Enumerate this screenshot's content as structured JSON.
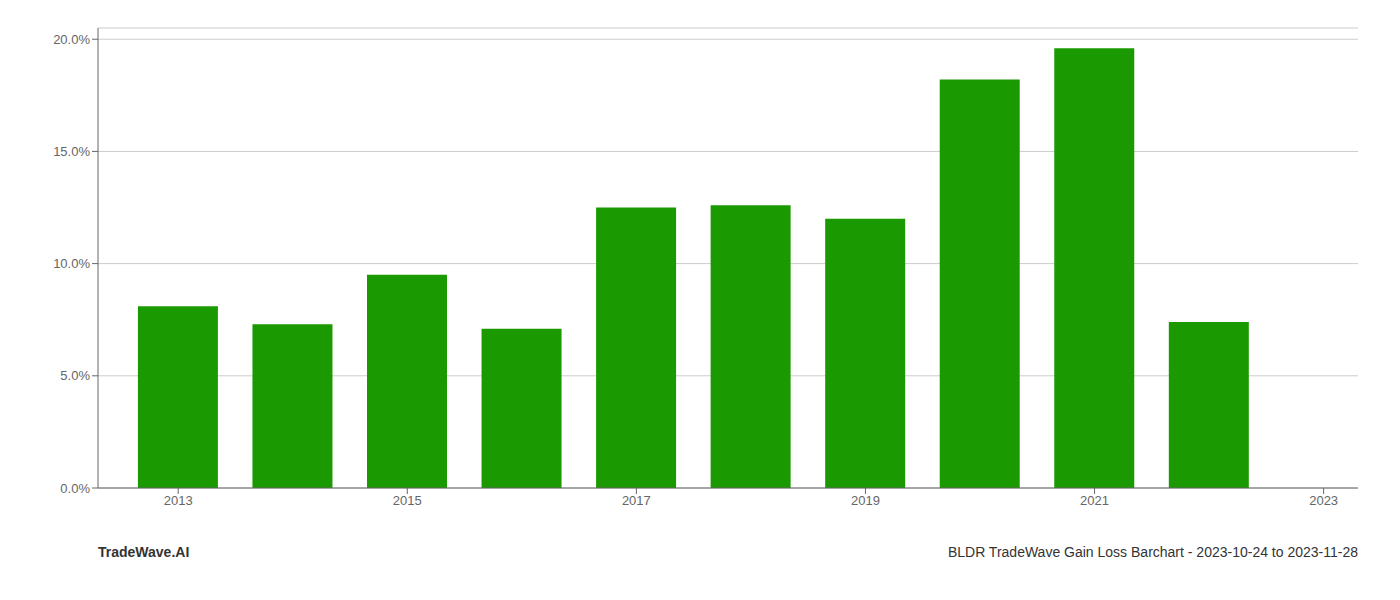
{
  "chart_data": {
    "type": "bar",
    "x": [
      2013,
      2014,
      2015,
      2016,
      2017,
      2018,
      2019,
      2020,
      2021,
      2022
    ],
    "values": [
      0.081,
      0.073,
      0.095,
      0.071,
      0.125,
      0.126,
      0.12,
      0.182,
      0.196,
      0.074
    ],
    "color": "#1a9a00",
    "xlim": [
      2012.3,
      2023.3
    ],
    "xticks": [
      2013,
      2015,
      2017,
      2019,
      2021,
      2023
    ],
    "ylim": [
      0,
      0.205
    ],
    "yticks": [
      {
        "value": 0.0,
        "label": "0.0%"
      },
      {
        "value": 0.05,
        "label": "5.0%"
      },
      {
        "value": 0.1,
        "label": "10.0%"
      },
      {
        "value": 0.15,
        "label": "15.0%"
      },
      {
        "value": 0.2,
        "label": "20.0%"
      }
    ],
    "grid": true,
    "annotations": [
      "TradeWave.AI",
      "BLDR TradeWave Gain Loss Barchart - 2023-10-24 to 2023-11-28"
    ]
  }
}
